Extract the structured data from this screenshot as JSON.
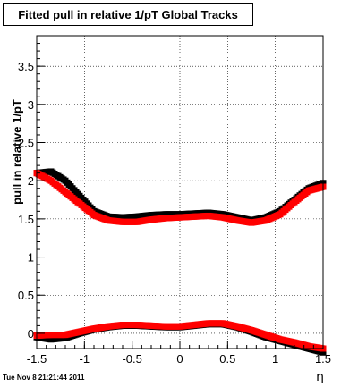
{
  "title": "Fitted pull in relative 1/pT  Global Tracks",
  "timestamp": "Tue Nov  8 21:21:44 2011",
  "chart_data": {
    "type": "scatter",
    "title": "Fitted pull in relative 1/pT  Global Tracks",
    "xlabel": "η",
    "ylabel": "pull in relative 1/pT",
    "xlim": [
      -1.5,
      1.5
    ],
    "ylim": [
      -0.2,
      3.9
    ],
    "xticks": [
      -1.5,
      -1,
      -0.5,
      0,
      0.5,
      1,
      1.5
    ],
    "xtick_labels": [
      "-1.5",
      "-1",
      "-0.5",
      "0",
      "0.5",
      "1",
      "1.5"
    ],
    "yticks": [
      0,
      0.5,
      1,
      1.5,
      2,
      2.5,
      3,
      3.5
    ],
    "ytick_labels": [
      "0",
      "0.5",
      "1",
      "1.5",
      "2",
      "2.5",
      "3",
      "3.5"
    ],
    "grid": true,
    "marker": "square",
    "series": [
      {
        "color": "#000000",
        "x": [
          -1.5,
          -1.35,
          -1.2,
          -1.05,
          -0.9,
          -0.75,
          -0.6,
          -0.45,
          -0.3,
          -0.15,
          0.0,
          0.15,
          0.3,
          0.45,
          0.6,
          0.75,
          0.9,
          1.05,
          1.2,
          1.35,
          1.5
        ],
        "y": [
          2.1,
          2.12,
          2.0,
          1.8,
          1.6,
          1.53,
          1.52,
          1.53,
          1.55,
          1.56,
          1.56,
          1.57,
          1.58,
          1.56,
          1.52,
          1.48,
          1.52,
          1.6,
          1.75,
          1.9,
          1.97
        ]
      },
      {
        "color": "#000000",
        "x": [
          -1.5,
          -1.35,
          -1.2,
          -1.05,
          -0.9,
          -0.75,
          -0.6,
          -0.45,
          -0.3,
          -0.15,
          0.0,
          0.15,
          0.3,
          0.45,
          0.6,
          0.75,
          0.9,
          1.05,
          1.2,
          1.35,
          1.5
        ],
        "y": [
          -0.05,
          -0.08,
          -0.06,
          0.0,
          0.05,
          0.08,
          0.1,
          0.1,
          0.09,
          0.08,
          0.08,
          0.1,
          0.12,
          0.12,
          0.08,
          0.02,
          -0.05,
          -0.1,
          -0.15,
          -0.2,
          -0.25
        ]
      },
      {
        "color": "#ff0000",
        "x": [
          -1.5,
          -1.35,
          -1.2,
          -1.05,
          -0.9,
          -0.75,
          -0.6,
          -0.45,
          -0.3,
          -0.15,
          0.0,
          0.15,
          0.3,
          0.45,
          0.6,
          0.75,
          0.9,
          1.05,
          1.2,
          1.35,
          1.5
        ],
        "y": [
          2.1,
          2.0,
          1.85,
          1.7,
          1.55,
          1.48,
          1.46,
          1.46,
          1.49,
          1.51,
          1.52,
          1.53,
          1.54,
          1.52,
          1.48,
          1.45,
          1.48,
          1.56,
          1.72,
          1.87,
          1.92
        ]
      },
      {
        "color": "#ff0000",
        "x": [
          -1.5,
          -1.35,
          -1.2,
          -1.05,
          -0.9,
          -0.75,
          -0.6,
          -0.45,
          -0.3,
          -0.15,
          0.0,
          0.15,
          0.3,
          0.45,
          0.6,
          0.75,
          0.9,
          1.05,
          1.2,
          1.35,
          1.5
        ],
        "y": [
          -0.03,
          -0.02,
          -0.02,
          0.02,
          0.06,
          0.09,
          0.11,
          0.11,
          0.1,
          0.09,
          0.09,
          0.11,
          0.13,
          0.13,
          0.09,
          0.04,
          -0.02,
          -0.08,
          -0.12,
          -0.17,
          -0.2
        ]
      }
    ]
  }
}
